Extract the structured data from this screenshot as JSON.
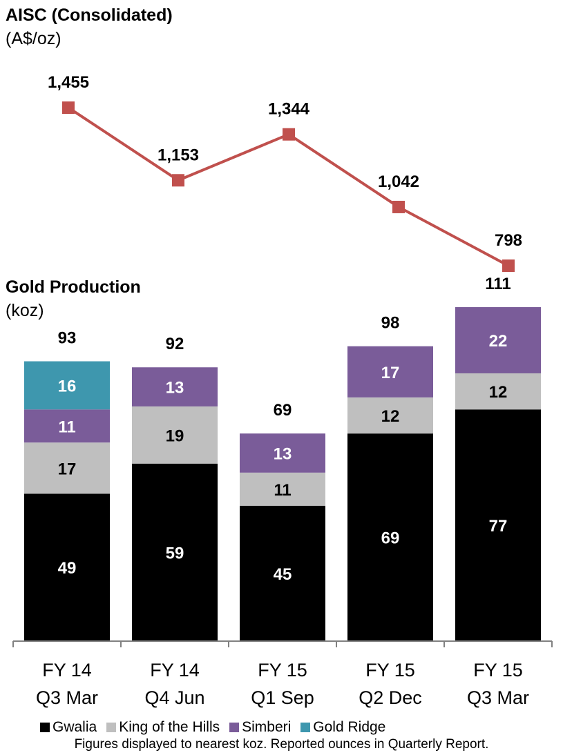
{
  "chart_data": [
    {
      "type": "line",
      "title": "AISC (Consolidated)",
      "subtitle": "(A$/oz)",
      "categories": [
        "FY 14 Q3 Mar",
        "FY 14 Q4 Jun",
        "FY 15 Q1 Sep",
        "FY 15 Q2 Dec",
        "FY 15 Q3 Mar"
      ],
      "values": [
        1455,
        1153,
        1344,
        1042,
        798
      ],
      "value_labels": [
        "1,455",
        "1,153",
        "1,344",
        "1,042",
        "798"
      ],
      "color": "#C0504D",
      "grid": false
    },
    {
      "type": "bar",
      "stacked": true,
      "title": "Gold Production",
      "subtitle": "(koz)",
      "categories": [
        {
          "line1": "FY 14",
          "line2": "Q3 Mar"
        },
        {
          "line1": "FY 14",
          "line2": "Q4 Jun"
        },
        {
          "line1": "FY 15",
          "line2": "Q1 Sep"
        },
        {
          "line1": "FY 15",
          "line2": "Q2 Dec"
        },
        {
          "line1": "FY 15",
          "line2": "Q3 Mar"
        }
      ],
      "series": [
        {
          "name": "Gwalia",
          "color": "#000000",
          "label_color": "#ffffff",
          "values": [
            49,
            59,
            45,
            69,
            77
          ]
        },
        {
          "name": "King of the Hills",
          "color": "#BFBFBF",
          "label_color": "#000000",
          "values": [
            17,
            19,
            11,
            12,
            12
          ]
        },
        {
          "name": "Simberi",
          "color": "#7A5C99",
          "label_color": "#ffffff",
          "values": [
            11,
            13,
            13,
            17,
            22
          ]
        },
        {
          "name": "Gold Ridge",
          "color": "#3E97AE",
          "label_color": "#ffffff",
          "values": [
            16,
            0,
            0,
            0,
            0
          ]
        }
      ],
      "totals": [
        93,
        92,
        69,
        98,
        111
      ],
      "grid": false,
      "legend_position": "bottom"
    }
  ],
  "footnote": "Figures displayed to nearest koz.  Reported ounces in Quarterly Report."
}
